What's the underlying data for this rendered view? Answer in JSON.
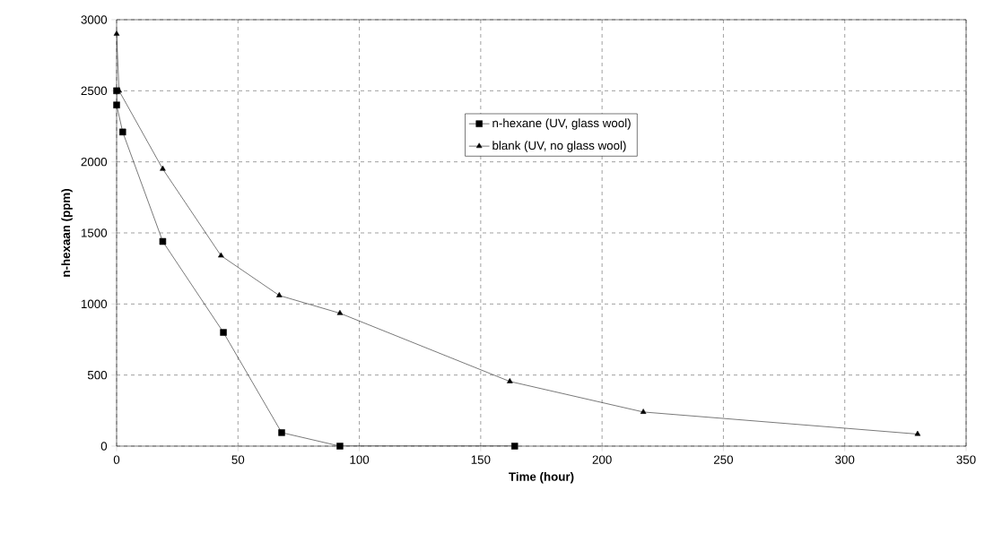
{
  "chart_data": {
    "type": "line",
    "xlabel": "Time (hour)",
    "ylabel": "n-hexaan (ppm)",
    "xlim": [
      0,
      350
    ],
    "xticks": [
      0,
      50,
      100,
      150,
      200,
      250,
      300,
      350
    ],
    "ylim": [
      0,
      3000
    ],
    "yticks": [
      0,
      500,
      1000,
      1500,
      2000,
      2500,
      3000
    ],
    "grid": true,
    "legend": "center",
    "line_style": "solid",
    "series": [
      {
        "name": "n-hexane (UV, glass wool)",
        "color": "#000000",
        "marker": "square",
        "x": [
          0,
          0,
          2.5,
          19,
          44,
          68,
          92,
          164
        ],
        "values": [
          2500,
          2400,
          2210,
          1440,
          800,
          95,
          0,
          0
        ]
      },
      {
        "name": "blank (UV, no glass wool)",
        "color": "#000000",
        "marker": "triangle",
        "x": [
          0,
          1,
          19,
          43,
          67,
          92,
          162,
          217,
          330
        ],
        "values": [
          2900,
          2500,
          1950,
          1340,
          1060,
          935,
          455,
          240,
          85
        ]
      }
    ]
  }
}
